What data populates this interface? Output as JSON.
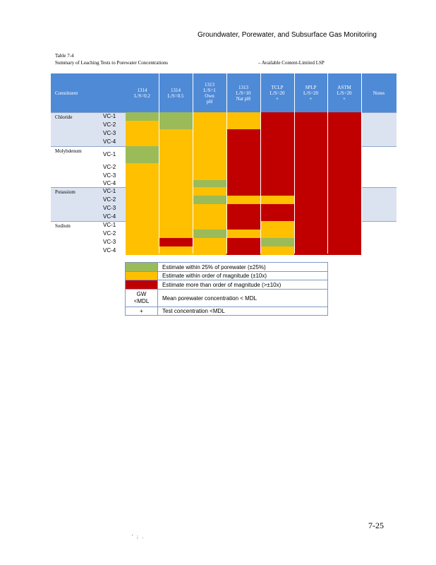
{
  "header": {
    "running_title": "Groundwater, Porewater, and Subsurface Gas Monitoring"
  },
  "table": {
    "label": "Table 7-4",
    "title": "Summary of Leaching Tests to Porewater Concentrations",
    "note": "–  Available Content-Limited LSP",
    "headers": [
      "Constituent",
      "1314\nL/S=0.2",
      "1314\nL/S=0.5",
      "1313\nL/S=1\nOwn\npH",
      "1313\nL/S=10\nNat pH",
      "TCLP\nL/S=20\n+",
      "SPLP\nL/S=20\n+",
      "ASTM\nL/S=20\n+",
      "Notes"
    ],
    "groups": [
      {
        "name": "Chloride",
        "rows": [
          "VC-1",
          "VC-2",
          "VC-3",
          "VC-4"
        ]
      },
      {
        "name": "Molybdenum",
        "rows": [
          "VC-1",
          "VC-2",
          "VC-3",
          "VC-4"
        ]
      },
      {
        "name": "Potassium",
        "rows": [
          "VC-1",
          "VC-2",
          "VC-3",
          "VC-4"
        ]
      },
      {
        "name": "Sodium",
        "rows": [
          "VC-1",
          "VC-2",
          "VC-3",
          "VC-4"
        ]
      }
    ],
    "cell_levels": {
      "Chloride": [
        [
          "G",
          "G",
          "Y",
          "Y",
          "R",
          "R",
          "R"
        ],
        [
          "Y",
          "G",
          "Y",
          "Y",
          "R",
          "R",
          "R"
        ],
        [
          "Y",
          "Y",
          "Y",
          "R",
          "R",
          "R",
          "R"
        ],
        [
          "Y",
          "Y",
          "Y",
          "R",
          "R",
          "R",
          "R"
        ]
      ],
      "Molybdenum": [
        [
          "G",
          "Y",
          "Y",
          "R",
          "R",
          "R",
          "R"
        ],
        [
          "Y",
          "Y",
          "Y",
          "R",
          "R",
          "R",
          "R"
        ],
        [
          "Y",
          "Y",
          "Y",
          "R",
          "R",
          "R",
          "R"
        ],
        [
          "Y",
          "Y",
          "G",
          "R",
          "R",
          "R",
          "R"
        ]
      ],
      "Potassium": [
        [
          "Y",
          "Y",
          "Y",
          "R",
          "R",
          "R",
          "R"
        ],
        [
          "Y",
          "Y",
          "G",
          "Y",
          "Y",
          "R",
          "R"
        ],
        [
          "Y",
          "Y",
          "Y",
          "R",
          "R",
          "R",
          "R"
        ],
        [
          "Y",
          "Y",
          "Y",
          "R",
          "R",
          "R",
          "R"
        ]
      ],
      "Sodium": [
        [
          "Y",
          "Y",
          "Y",
          "R",
          "Y",
          "R",
          "R"
        ],
        [
          "Y",
          "Y",
          "G",
          "Y",
          "Y",
          "R",
          "R"
        ],
        [
          "Y",
          "R",
          "Y",
          "R",
          "G",
          "R",
          "R"
        ],
        [
          "Y",
          "Y",
          "Y",
          "R",
          "Y",
          "R",
          "R"
        ]
      ]
    },
    "colors": {
      "G": "#9bbb59",
      "Y": "#ffc000",
      "R": "#c00000",
      "header_bg": "#4f8ad6",
      "shade": "#dce3f0"
    }
  },
  "legend": {
    "items": [
      {
        "swatch": "G",
        "symbol": "",
        "text": "Estimate within 25% of porewater (±25%)"
      },
      {
        "swatch": "Y",
        "symbol": "",
        "text": "Estimate within order of magnitude (±10x)"
      },
      {
        "swatch": "R",
        "symbol": "",
        "text": "Estimate more than order of magnitude (>±10x)"
      },
      {
        "swatch": "",
        "symbol": "GW\n<MDL",
        "text": "Mean porewater concentration < MDL"
      },
      {
        "swatch": "",
        "symbol": "+",
        "text": "Test concentration <MDL"
      }
    ]
  },
  "footer": {
    "page_number": "7-25",
    "marks": "' ; ."
  }
}
